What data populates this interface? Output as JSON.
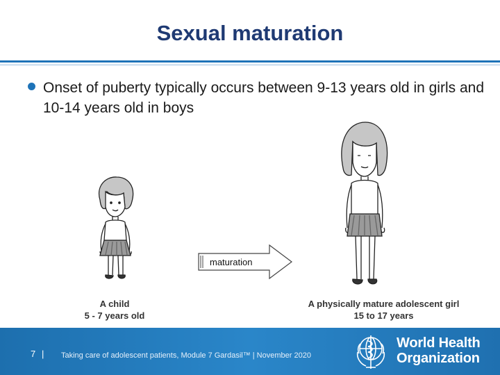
{
  "slide": {
    "title": "Sexual maturation",
    "bullet": "Onset of puberty typically occurs between 9-13 years old in girls and 10-14 years old in boys"
  },
  "figures": {
    "arrow_label": "maturation",
    "child_caption_line1": "A child",
    "child_caption_line2": "5 - 7 years old",
    "teen_caption_line1": "A physically mature adolescent girl",
    "teen_caption_line2": "15 to 17 years"
  },
  "footer": {
    "page_number": "7",
    "separator": "|",
    "text": "Taking care of adolescent patients, Module 7  Gardasil™ | November 2020",
    "org_line1": "World Health",
    "org_line2": "Organization"
  },
  "colors": {
    "title": "#1f3a73",
    "accent": "#1e73b8",
    "footer_bg": "#1d6fae"
  },
  "icons": [
    "bullet-dot-icon",
    "child-girl-illustration",
    "adolescent-girl-illustration",
    "right-arrow-icon",
    "who-emblem-icon"
  ]
}
